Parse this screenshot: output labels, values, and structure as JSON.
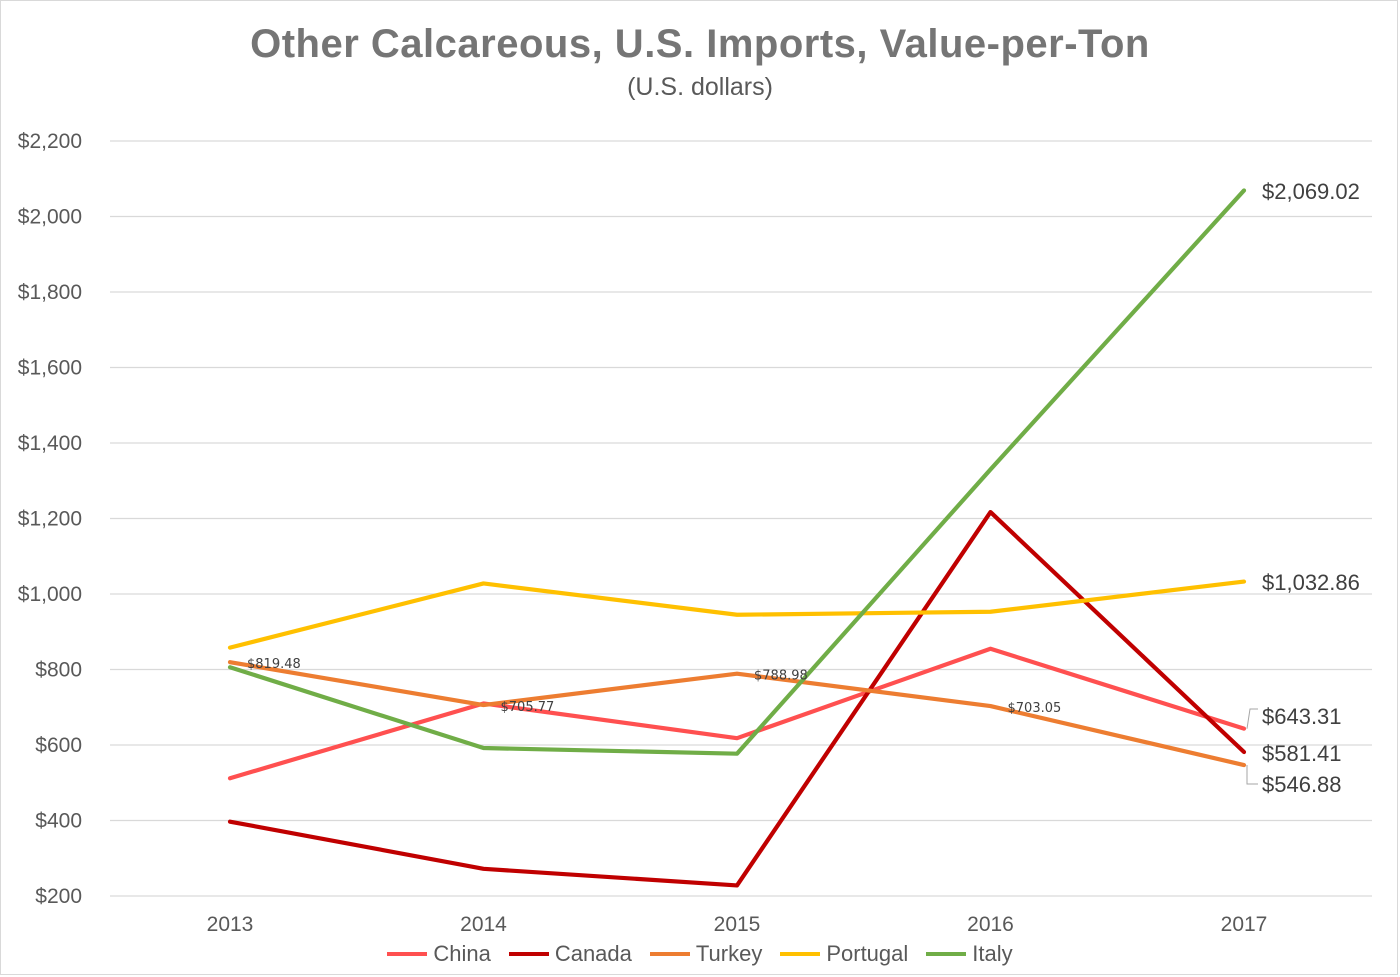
{
  "chart_data": {
    "type": "line",
    "title": "Other Calcareous, U.S. Imports, Value-per-Ton",
    "subtitle": "(U.S. dollars)",
    "categories": [
      "2013",
      "2014",
      "2015",
      "2016",
      "2017"
    ],
    "ylim": [
      200,
      2200
    ],
    "yticks": [
      200,
      400,
      600,
      800,
      1000,
      1200,
      1400,
      1600,
      1800,
      2000,
      2200
    ],
    "ytick_labels": [
      "$200",
      "$400",
      "$600",
      "$800",
      "$1,000",
      "$1,200",
      "$1,400",
      "$1,600",
      "$1,800",
      "$2,000",
      "$2,200"
    ],
    "grid": true,
    "legend_position": "bottom",
    "series": [
      {
        "name": "China",
        "color": "#ff5050",
        "values": [
          512,
          710,
          618,
          855,
          643.31
        ]
      },
      {
        "name": "Canada",
        "color": "#c00000",
        "values": [
          397,
          272,
          228,
          1217,
          581.41
        ]
      },
      {
        "name": "Turkey",
        "color": "#ed7d31",
        "values": [
          819.48,
          705.77,
          788.98,
          703.05,
          546.88
        ]
      },
      {
        "name": "Portugal",
        "color": "#ffc000",
        "values": [
          858,
          1028,
          945,
          953,
          1032.86
        ]
      },
      {
        "name": "Italy",
        "color": "#70ad47",
        "values": [
          806,
          592,
          577,
          1330,
          2069.02
        ]
      }
    ],
    "data_labels": [
      {
        "series": "Italy",
        "index": 4,
        "text": "$2,069.02",
        "size": "big"
      },
      {
        "series": "Portugal",
        "index": 4,
        "text": "$1,032.86",
        "size": "big"
      },
      {
        "series": "China",
        "index": 4,
        "text": "$643.31",
        "size": "big"
      },
      {
        "series": "Canada",
        "index": 4,
        "text": "$581.41",
        "size": "big"
      },
      {
        "series": "Turkey",
        "index": 4,
        "text": "$546.88",
        "size": "big"
      },
      {
        "series": "Turkey",
        "index": 0,
        "text": "$819.48",
        "size": "small"
      },
      {
        "series": "Turkey",
        "index": 1,
        "text": "$705.77",
        "size": "small"
      },
      {
        "series": "Turkey",
        "index": 2,
        "text": "$788.98",
        "size": "small"
      },
      {
        "series": "Turkey",
        "index": 3,
        "text": "$703.05",
        "size": "small"
      }
    ]
  }
}
